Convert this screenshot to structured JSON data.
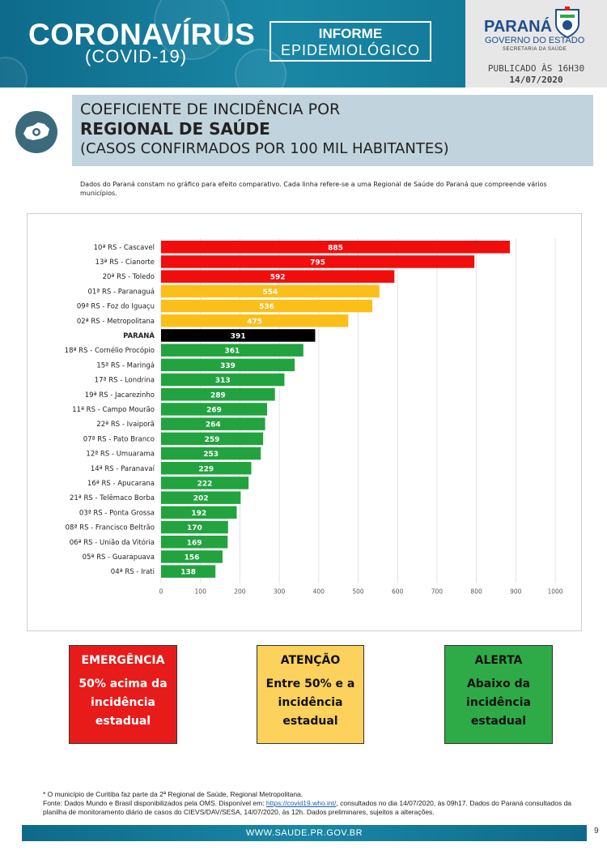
{
  "header": {
    "brand_title": "CORONAVÍRUS",
    "brand_subtitle": "(COVID-19)",
    "informe_line1": "INFORME",
    "informe_line2": "EPIDEMIOLÓGICO",
    "gov_name": "PARANÁ",
    "gov_sub": "GOVERNO DO ESTADO",
    "gov_sub2": "SECRETARIA DA SAÚDE",
    "published_label": "PUBLICADO ÀS 16H30",
    "published_date": "14/07/2020"
  },
  "title": {
    "line1": "COEFICIENTE DE INCIDÊNCIA POR",
    "line2": "REGIONAL DE SAÚDE",
    "line3": "(CASOS CONFIRMADOS POR 100 MIL HABITANTES)"
  },
  "note": "Dados do Paraná constam no gráfico para efeito comparativo. Cada linha refere-se a uma Regional de Saúde do Paraná que compreende vários municípios.",
  "chart_data": {
    "type": "bar",
    "orientation": "horizontal",
    "categories": [
      "10ª RS - Cascavel",
      "13ª RS - Cianorte",
      "20ª RS - Toledo",
      "01ª RS - Paranaguá",
      "09ª RS - Foz do Iguaçu",
      "02ª RS - Metropolitana",
      "PARANÁ",
      "18ª RS - Cornélio Procópio",
      "15ª RS - Maringá",
      "17ª RS - Londrina",
      "19ª RS - Jacarezinho",
      "11ª RS - Campo Mourão",
      "22ª RS - Ivaiporã",
      "07ª RS - Pato Branco",
      "12ª RS - Umuarama",
      "14ª RS - Paranavaí",
      "16ª RS - Apucarana",
      "21ª RS - Telêmaco Borba",
      "03ª RS - Ponta Grossa",
      "08ª RS - Francisco Beltrão",
      "06ª RS - União da Vitória",
      "05ª RS - Guarapuava",
      "04ª RS - Irati"
    ],
    "values": [
      885,
      795,
      592,
      554,
      536,
      475,
      391,
      361,
      339,
      313,
      289,
      269,
      264,
      259,
      253,
      229,
      222,
      202,
      192,
      170,
      169,
      156,
      138
    ],
    "colors": [
      "#f20d0d",
      "#f20d0d",
      "#f20d0d",
      "#fbbf1a",
      "#fbbf1a",
      "#fbbf1a",
      "#000000",
      "#22a33f",
      "#22a33f",
      "#22a33f",
      "#22a33f",
      "#22a33f",
      "#22a33f",
      "#22a33f",
      "#22a33f",
      "#22a33f",
      "#22a33f",
      "#22a33f",
      "#22a33f",
      "#22a33f",
      "#22a33f",
      "#22a33f",
      "#22a33f"
    ],
    "xlim": [
      0,
      1000
    ],
    "xticks": [
      0,
      100,
      200,
      300,
      400,
      500,
      600,
      700,
      800,
      900,
      1000
    ],
    "grid": "vertical"
  },
  "legend": {
    "emergency_title": "EMERGÊNCIA",
    "emergency_text": "50% acima da incidência estadual",
    "attention_title": "ATENÇÃO",
    "attention_text": "Entre 50% e a incidência estadual",
    "alert_title": "ALERTA",
    "alert_text": "Abaixo da incidência estadual"
  },
  "footnote": {
    "line1": "* O município de Curitiba faz parte da 2ª Regional de Saúde, Regional Metropolitana.",
    "line2_pre": "Fonte: Dados Mundo e Brasil disponibilizados pela OMS. Disponível em: ",
    "link": "https://covid19.who.int/",
    "line2_post": ", consultados no dia 14/07/2020, às 09h17. Dados do Paraná consultados da planilha de monitoramento diário de casos do CIEVS/DAV/SESA, 14/07/2020, às 12h. Dados preliminares, sujeitos a alterações."
  },
  "footer": {
    "site": "WWW.SAUDE.PR.GOV.BR",
    "page": "9"
  }
}
